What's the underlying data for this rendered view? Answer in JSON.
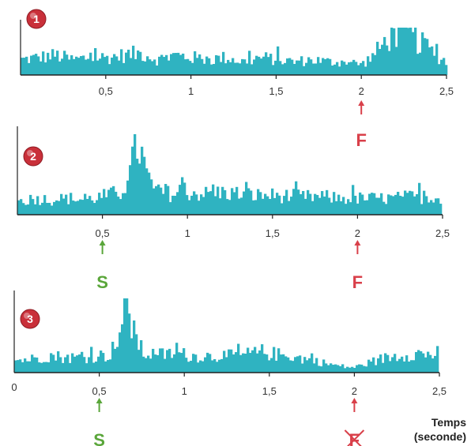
{
  "chart_data": {
    "type": "bar",
    "xlim": [
      0,
      2.5
    ],
    "tick_labels": [
      "0,5",
      "1",
      "1,5",
      "2",
      "2,5"
    ],
    "origin_label": "0",
    "axis_title": [
      "Temps",
      "(seconde)"
    ],
    "bar_color": "#2fb3c1",
    "start_color": "#5aa63a",
    "finish_color": "#d9404a",
    "panels": [
      {
        "number": "1",
        "start_marker": null,
        "finish_marker": {
          "label": "F",
          "x": 2.0,
          "crossed": false
        },
        "profile": [
          [
            0.0,
            0.35
          ],
          [
            0.1,
            0.4
          ],
          [
            0.2,
            0.45
          ],
          [
            0.3,
            0.35
          ],
          [
            0.4,
            0.4
          ],
          [
            0.5,
            0.4
          ],
          [
            0.6,
            0.45
          ],
          [
            0.7,
            0.5
          ],
          [
            0.8,
            0.35
          ],
          [
            0.9,
            0.45
          ],
          [
            1.0,
            0.4
          ],
          [
            1.1,
            0.35
          ],
          [
            1.2,
            0.4
          ],
          [
            1.3,
            0.3
          ],
          [
            1.4,
            0.4
          ],
          [
            1.5,
            0.35
          ],
          [
            1.6,
            0.3
          ],
          [
            1.7,
            0.35
          ],
          [
            1.8,
            0.3
          ],
          [
            1.9,
            0.3
          ],
          [
            2.0,
            0.25
          ],
          [
            2.05,
            0.4
          ],
          [
            2.1,
            0.6
          ],
          [
            2.15,
            0.85
          ],
          [
            2.2,
            0.95
          ],
          [
            2.25,
            1.0
          ],
          [
            2.3,
            0.85
          ],
          [
            2.35,
            0.7
          ],
          [
            2.4,
            0.55
          ],
          [
            2.45,
            0.4
          ],
          [
            2.5,
            0.3
          ]
        ]
      },
      {
        "number": "2",
        "start_marker": {
          "label": "S",
          "x": 0.5
        },
        "finish_marker": {
          "label": "F",
          "x": 2.0,
          "crossed": false
        },
        "profile": [
          [
            0.0,
            0.18
          ],
          [
            0.1,
            0.22
          ],
          [
            0.2,
            0.2
          ],
          [
            0.3,
            0.22
          ],
          [
            0.4,
            0.2
          ],
          [
            0.5,
            0.25
          ],
          [
            0.6,
            0.3
          ],
          [
            0.65,
            0.5
          ],
          [
            0.7,
            1.0
          ],
          [
            0.75,
            0.55
          ],
          [
            0.8,
            0.3
          ],
          [
            0.9,
            0.28
          ],
          [
            1.0,
            0.3
          ],
          [
            1.1,
            0.28
          ],
          [
            1.2,
            0.3
          ],
          [
            1.3,
            0.28
          ],
          [
            1.4,
            0.26
          ],
          [
            1.5,
            0.26
          ],
          [
            1.6,
            0.25
          ],
          [
            1.7,
            0.24
          ],
          [
            1.8,
            0.24
          ],
          [
            1.9,
            0.22
          ],
          [
            2.0,
            0.22
          ],
          [
            2.1,
            0.22
          ],
          [
            2.2,
            0.22
          ],
          [
            2.3,
            0.24
          ],
          [
            2.4,
            0.24
          ],
          [
            2.5,
            0.24
          ]
        ]
      },
      {
        "number": "3",
        "start_marker": {
          "label": "S",
          "x": 0.5
        },
        "finish_marker": {
          "label": "F",
          "x": 2.0,
          "crossed": true
        },
        "profile": [
          [
            0.0,
            0.18
          ],
          [
            0.1,
            0.2
          ],
          [
            0.2,
            0.25
          ],
          [
            0.3,
            0.22
          ],
          [
            0.4,
            0.22
          ],
          [
            0.5,
            0.25
          ],
          [
            0.55,
            0.25
          ],
          [
            0.6,
            0.45
          ],
          [
            0.65,
            1.0
          ],
          [
            0.7,
            0.55
          ],
          [
            0.75,
            0.28
          ],
          [
            0.85,
            0.26
          ],
          [
            0.95,
            0.28
          ],
          [
            1.05,
            0.24
          ],
          [
            1.15,
            0.24
          ],
          [
            1.25,
            0.24
          ],
          [
            1.35,
            0.26
          ],
          [
            1.45,
            0.3
          ],
          [
            1.55,
            0.26
          ],
          [
            1.65,
            0.22
          ],
          [
            1.75,
            0.18
          ],
          [
            1.85,
            0.12
          ],
          [
            1.95,
            0.08
          ],
          [
            2.0,
            0.08
          ],
          [
            2.05,
            0.12
          ],
          [
            2.15,
            0.2
          ],
          [
            2.25,
            0.25
          ],
          [
            2.35,
            0.28
          ],
          [
            2.45,
            0.26
          ],
          [
            2.5,
            0.3
          ]
        ]
      }
    ]
  }
}
